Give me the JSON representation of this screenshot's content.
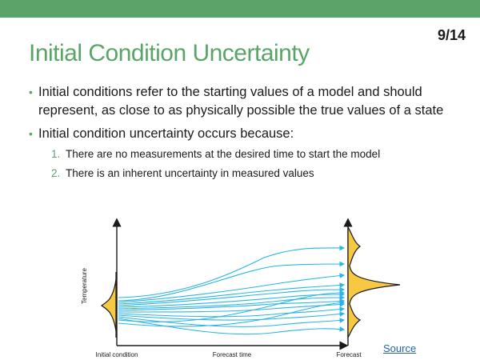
{
  "slide": {
    "page_number": "9/14",
    "title": "Initial Condition Uncertainty",
    "bullet1": "Initial conditions refer to the starting values of a model and should represent, as close to as physically possible the true values of a state",
    "bullet2": "Initial condition uncertainty occurs because:",
    "sub_items": [
      {
        "num": "1.",
        "text": "There are no measurements at the desired time to start the model"
      },
      {
        "num": "2.",
        "text": "There is an inherent uncertainty in measured values"
      }
    ],
    "source_link": "Source"
  },
  "diagram": {
    "y_axis_label": "Temperature",
    "x_label_left": "Initial condition",
    "x_label_mid": "Forecast time",
    "x_label_right": "Forecast",
    "colors": {
      "trajectory": "#29b5e8",
      "distribution": "#f7c842",
      "axis": "#1a1a1a",
      "accent": "#5aa469"
    }
  }
}
